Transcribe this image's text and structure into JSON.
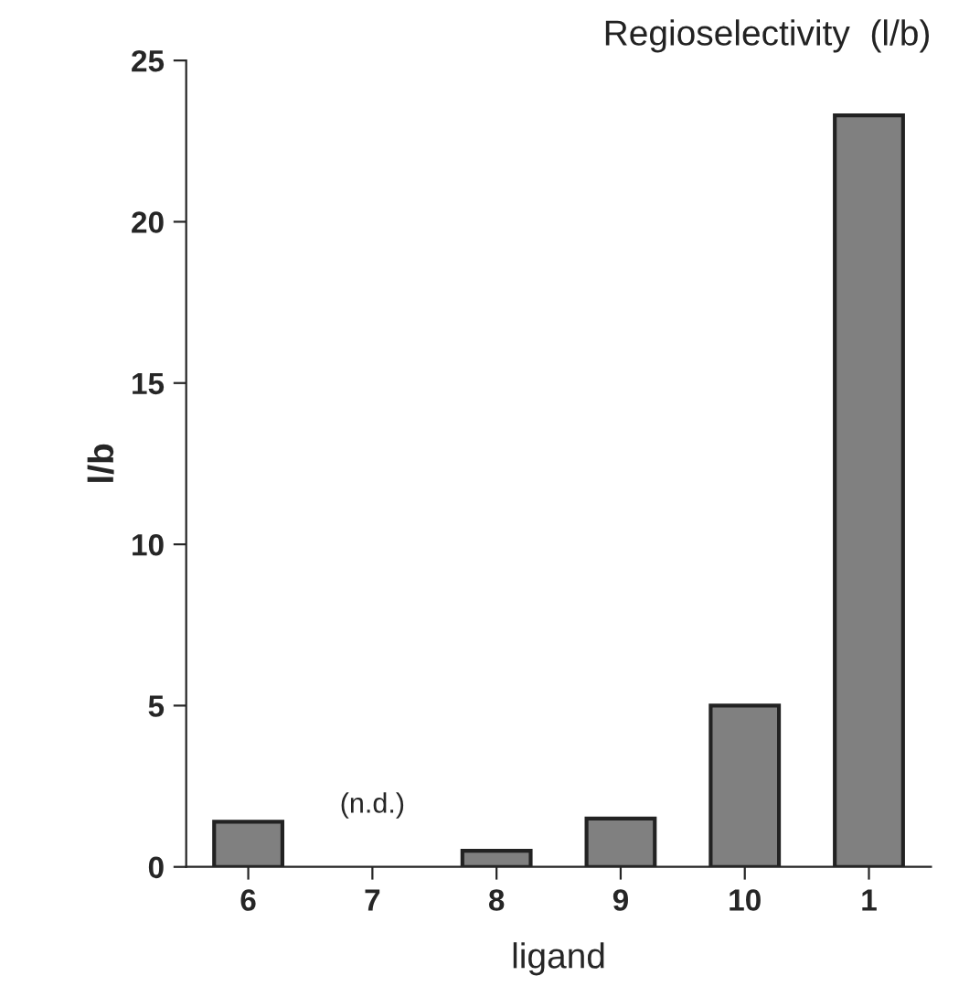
{
  "chart_data": {
    "type": "bar",
    "title": "Regioselectivity  (l/b)",
    "xlabel": "ligand",
    "ylabel": "l/b",
    "categories": [
      "6",
      "7",
      "8",
      "9",
      "10",
      "1"
    ],
    "values": [
      1.4,
      null,
      0.5,
      1.5,
      5.0,
      23.3
    ],
    "color": "#808080",
    "annotations": [
      "(n.d.)"
    ],
    "ylim": [
      0,
      25
    ],
    "yticks": [
      0,
      5,
      10,
      15,
      20,
      25
    ],
    "grid": false,
    "legend": false
  }
}
